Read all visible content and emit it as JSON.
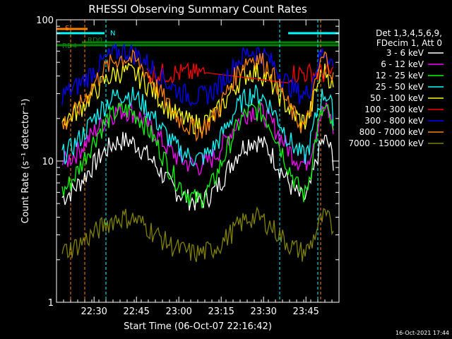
{
  "chart_data": {
    "type": "line",
    "title": "RHESSI Observing Summary Count Rates",
    "xlabel": "Start Time (06-Oct-07 22:16:42)",
    "ylabel": "Count Rate (s⁻¹ detector⁻¹)",
    "yscale": "log",
    "ylim": [
      1,
      100
    ],
    "xlim_minutes": [
      0,
      100
    ],
    "x_ticks": [
      {
        "label": "22:30",
        "value": 13.3
      },
      {
        "label": "22:45",
        "value": 28.3
      },
      {
        "label": "23:00",
        "value": 43.3
      },
      {
        "label": "23:15",
        "value": 58.3
      },
      {
        "label": "23:30",
        "value": 73.3
      },
      {
        "label": "23:45",
        "value": 88.3
      }
    ],
    "y_ticks": [
      {
        "label": "1",
        "value": 1
      },
      {
        "label": "10",
        "value": 10
      },
      {
        "label": "100",
        "value": 100
      }
    ],
    "timestamp": "16-Oct-2021 17:44",
    "legend_header": [
      "Det 1,3,4,5,6,9,",
      "FDecim 1, Att 0"
    ],
    "series": [
      {
        "name": "3 - 6 keV",
        "color": "#ffffff",
        "base": 5,
        "amp": 9
      },
      {
        "name": "6 - 12 keV",
        "color": "#ff00ff",
        "base": 9,
        "amp": 14
      },
      {
        "name": "12 - 25 keV",
        "color": "#00ff00",
        "base": 5,
        "amp": 18
      },
      {
        "name": "25 - 50 keV",
        "color": "#00ffff",
        "base": 10,
        "amp": 20
      },
      {
        "name": "50 - 100 keV",
        "color": "#ffff00",
        "base": 18,
        "amp": 25
      },
      {
        "name": "100 - 300 keV",
        "color": "#ff0000",
        "base": 42,
        "amp": 0
      },
      {
        "name": "300 - 800 keV",
        "color": "#0000ff",
        "base": 28,
        "amp": 32
      },
      {
        "name": "800 - 7000 keV",
        "color": "#ff8000",
        "base": 16,
        "amp": 38
      },
      {
        "name": "7000 - 15000 keV",
        "color": "#808000",
        "base": 2.2,
        "amp": 1.8
      }
    ],
    "flags": [
      {
        "label": "S",
        "color": "#ff8000"
      },
      {
        "label": "N",
        "color": "#00ffff"
      },
      {
        "label": "RD0",
        "color": "#008000"
      },
      {
        "label": "RD4",
        "color": "#008000"
      }
    ]
  }
}
